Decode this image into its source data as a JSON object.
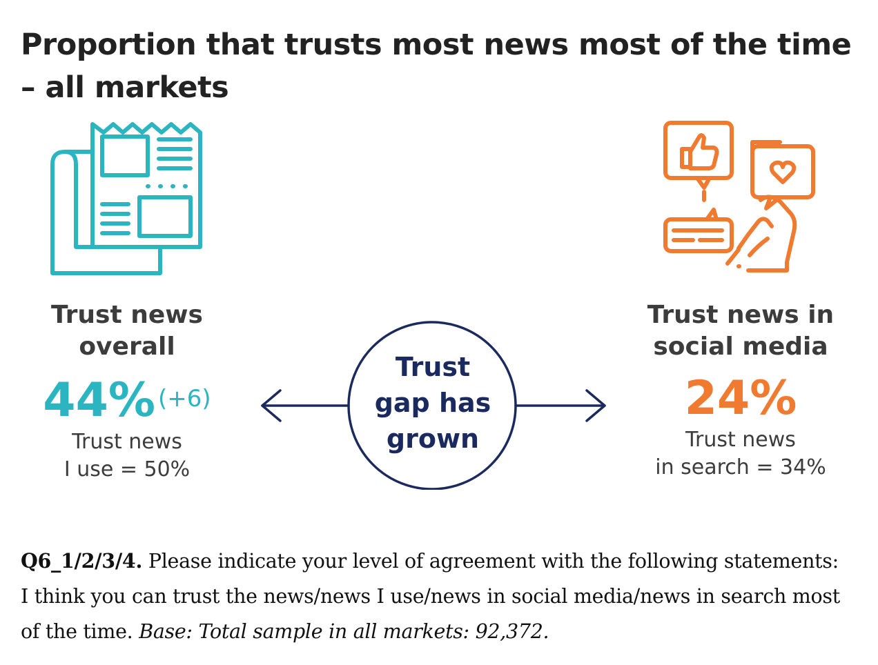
{
  "title": "Proportion that trusts most news most of the time – all markets",
  "colors": {
    "teal": "#2bb5c0",
    "orange": "#ef7a30",
    "navy": "#1b2a5e",
    "text": "#3c3c3c"
  },
  "icons": {
    "left": "newspaper-icon",
    "right": "social-media-icon"
  },
  "chart_data": {
    "type": "table",
    "title": "Proportion that trusts most news most of the time – all markets",
    "items": [
      {
        "label": "Trust news overall",
        "value": "44%",
        "change": "(+6)",
        "sub": "Trust news I use = 50%"
      },
      {
        "label": "Trust news in social media",
        "value": "24%",
        "sub": "Trust news in search = 34%"
      }
    ],
    "center_label": "Trust gap has grown"
  },
  "left": {
    "heading_line1": "Trust news",
    "heading_line2": "overall",
    "value": "44%",
    "change": "(+6)",
    "sub_line1": "Trust news",
    "sub_line2": "I use = 50%"
  },
  "right": {
    "heading_line1": "Trust news in",
    "heading_line2": "social media",
    "value": "24%",
    "sub_line1": "Trust news",
    "sub_line2": "in search = 34%"
  },
  "center": {
    "line1": "Trust",
    "line2": "gap has",
    "line3": "grown"
  },
  "footnote": {
    "code": "Q6_1/2/3/4.",
    "text": " Please indicate your level of agreement with the following statements: I think you can trust the news/news I use/news in social media/news in search most of the time. ",
    "base": "Base: Total sample in all markets: 92,372."
  }
}
